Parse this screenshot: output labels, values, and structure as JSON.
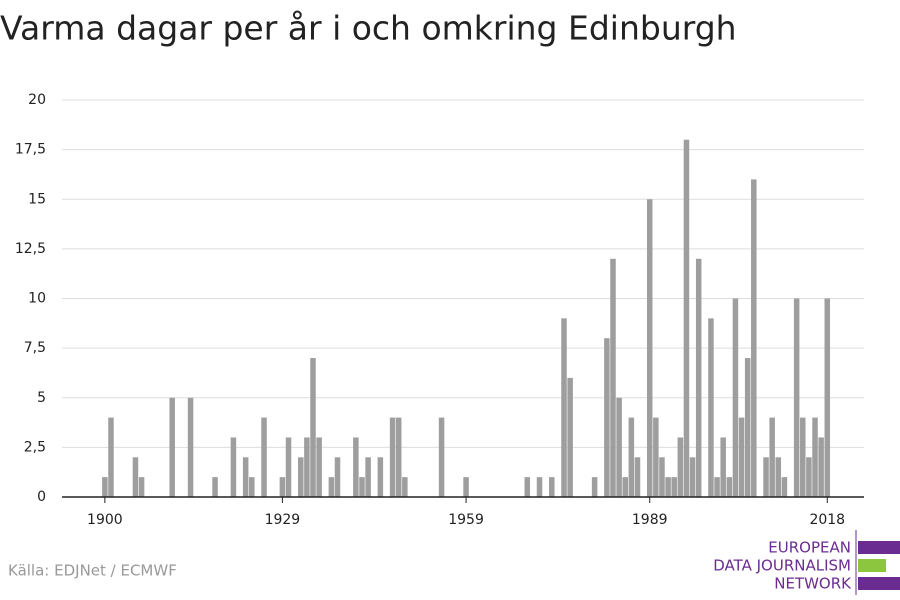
{
  "chart_data": {
    "type": "bar",
    "title": "Varma dagar per år i och omkring Edinburgh",
    "source": "Källa: EDJNet / ECMWF",
    "logo": [
      "EUROPEAN",
      "DATA JOURNALISM",
      "NETWORK"
    ],
    "color": "#9e9e9e",
    "x": [
      1900,
      1901,
      1905,
      1906,
      1911,
      1914,
      1918,
      1921,
      1923,
      1924,
      1926,
      1929,
      1930,
      1932,
      1933,
      1934,
      1935,
      1937,
      1938,
      1941,
      1942,
      1943,
      1945,
      1947,
      1948,
      1949,
      1955,
      1959,
      1969,
      1971,
      1973,
      1975,
      1976,
      1980,
      1982,
      1983,
      1984,
      1985,
      1986,
      1987,
      1989,
      1990,
      1991,
      1992,
      1993,
      1994,
      1995,
      1996,
      1997,
      1999,
      2000,
      2001,
      2002,
      2003,
      2004,
      2005,
      2006,
      2008,
      2009,
      2010,
      2011,
      2013,
      2014,
      2015,
      2016,
      2017,
      2018
    ],
    "values": [
      1,
      4,
      2,
      1,
      5,
      5,
      1,
      3,
      2,
      1,
      4,
      1,
      3,
      2,
      3,
      7,
      3,
      1,
      2,
      3,
      1,
      2,
      2,
      4,
      4,
      1,
      4,
      1,
      1,
      1,
      1,
      9,
      6,
      1,
      8,
      12,
      5,
      1,
      4,
      2,
      15,
      4,
      2,
      1,
      1,
      3,
      18,
      2,
      12,
      9,
      1,
      3,
      1,
      10,
      4,
      7,
      16,
      2,
      4,
      2,
      1,
      10,
      4,
      2,
      4,
      3,
      10
    ],
    "xlim": [
      1893,
      2024
    ],
    "xticks": [
      1900,
      1929,
      1959,
      1989,
      2018
    ],
    "ylim": [
      0,
      20
    ],
    "yticks": [
      0,
      {
        "value": 2.5,
        "label": "2,5"
      },
      5,
      {
        "value": 7.5,
        "label": "7,5"
      },
      10,
      {
        "value": 12.5,
        "label": "12,5"
      },
      15,
      {
        "value": 17.5,
        "label": "17,5"
      },
      20
    ],
    "grid": true
  }
}
